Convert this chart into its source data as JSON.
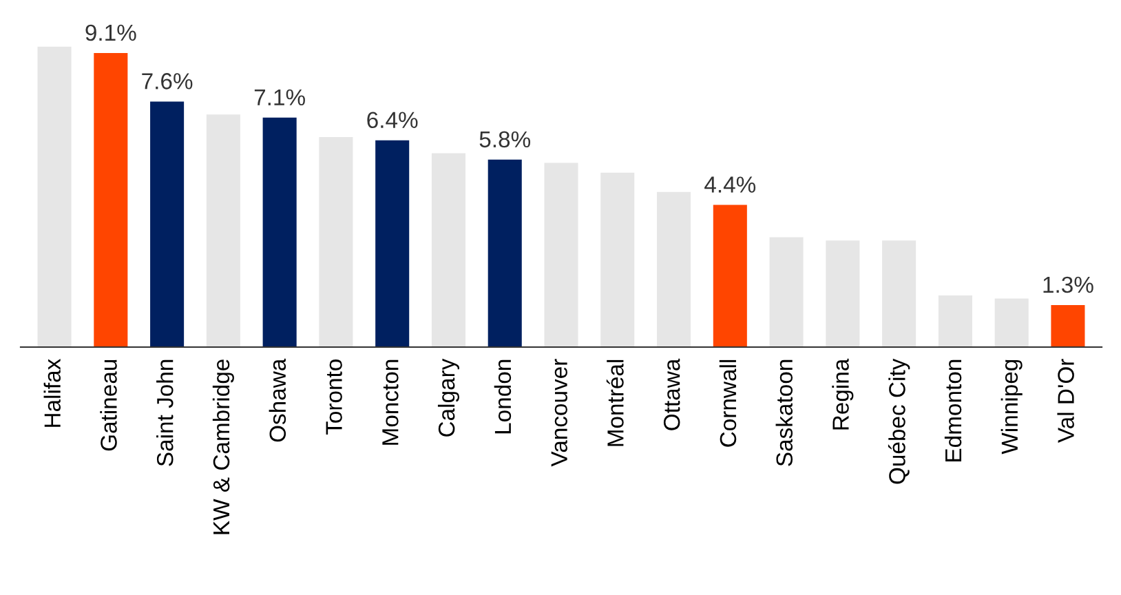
{
  "chart_data": {
    "type": "bar",
    "categories": [
      "Halifax",
      "Gatineau",
      "Saint John",
      "KW & Cambridge",
      "Oshawa",
      "Toronto",
      "Moncton",
      "Calgary",
      "London",
      "Vancouver",
      "Montréal",
      "Ottawa",
      "Cornwall",
      "Saskatoon",
      "Regina",
      "Québec City",
      "Edmonton",
      "Winnipeg",
      "Val D'Or"
    ],
    "values": [
      9.3,
      9.1,
      7.6,
      7.2,
      7.1,
      6.5,
      6.4,
      6.0,
      5.8,
      5.7,
      5.4,
      4.8,
      4.4,
      3.4,
      3.3,
      3.3,
      1.6,
      1.5,
      1.3
    ],
    "value_labels": [
      null,
      "9.1%",
      "7.6%",
      null,
      "7.1%",
      null,
      "6.4%",
      null,
      "5.8%",
      null,
      null,
      null,
      "4.4%",
      null,
      null,
      null,
      null,
      null,
      "1.3%"
    ],
    "colors": [
      "#e6e6e6",
      "#ff4500",
      "#002060",
      "#e6e6e6",
      "#002060",
      "#e6e6e6",
      "#002060",
      "#e6e6e6",
      "#002060",
      "#e6e6e6",
      "#e6e6e6",
      "#e6e6e6",
      "#ff4500",
      "#e6e6e6",
      "#e6e6e6",
      "#e6e6e6",
      "#e6e6e6",
      "#e6e6e6",
      "#ff4500"
    ],
    "grid": false,
    "legend": false
  }
}
